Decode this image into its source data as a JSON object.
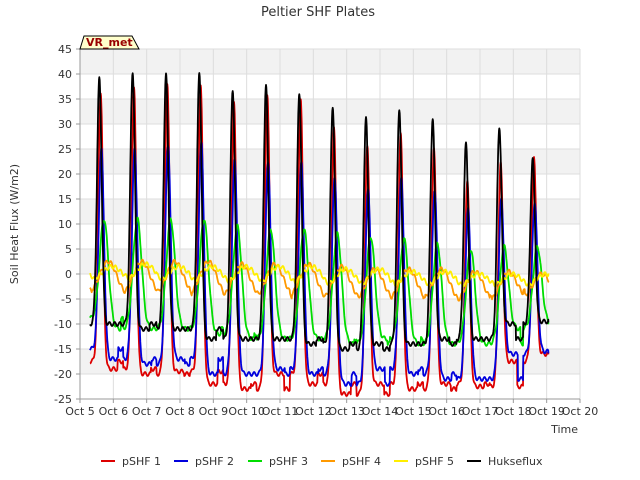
{
  "chart_data": {
    "type": "line",
    "title": "Peltier SHF Plates",
    "xlabel": "Time",
    "ylabel": "Soil Heat Flux (W/m2)",
    "ylim": [
      -25,
      45
    ],
    "xlim": [
      5,
      20
    ],
    "yticks": [
      -25,
      -20,
      -15,
      -10,
      -5,
      0,
      5,
      10,
      15,
      20,
      25,
      30,
      35,
      40,
      45
    ],
    "xticks": [
      {
        "x": 5,
        "label": "Oct 5"
      },
      {
        "x": 6,
        "label": "Oct 6"
      },
      {
        "x": 7,
        "label": "Oct 7"
      },
      {
        "x": 8,
        "label": "Oct 8"
      },
      {
        "x": 9,
        "label": "Oct 9"
      },
      {
        "x": 10,
        "label": "Oct 10"
      },
      {
        "x": 11,
        "label": "Oct 11"
      },
      {
        "x": 12,
        "label": "Oct 12"
      },
      {
        "x": 13,
        "label": "Oct 13"
      },
      {
        "x": 14,
        "label": "Oct 14"
      },
      {
        "x": 15,
        "label": "Oct 15"
      },
      {
        "x": 16,
        "label": "Oct 16"
      },
      {
        "x": 17,
        "label": "Oct 17"
      },
      {
        "x": 18,
        "label": "Oct 18"
      },
      {
        "x": 19,
        "label": "Oct 19"
      },
      {
        "x": 20,
        "label": "Oct 20"
      }
    ],
    "grid": true,
    "legend_position": "bottom",
    "annotation": "VR_met",
    "series": [
      {
        "name": "pSHF 1",
        "color": "#dd0000",
        "peak_phase": 0.62,
        "width": 0.07,
        "lag": 0,
        "points": [
          [
            5.3,
            -17
          ],
          [
            5.8,
            36.5
          ],
          [
            6.8,
            37
          ],
          [
            7.8,
            38
          ],
          [
            8.8,
            38
          ],
          [
            9.8,
            34
          ],
          [
            10.8,
            36
          ],
          [
            11.8,
            35
          ],
          [
            12.8,
            29
          ],
          [
            13.8,
            26
          ],
          [
            14.8,
            28
          ],
          [
            15.8,
            25
          ],
          [
            16.8,
            19
          ],
          [
            17.8,
            22
          ],
          [
            18.8,
            23.5
          ],
          [
            19.0,
            -18
          ]
        ],
        "troughs": [
          -17.5,
          -19,
          -20,
          -19.5,
          -22,
          -23,
          -20,
          -22,
          -24,
          -22,
          -23,
          -22,
          -22.5,
          -17.5,
          -16,
          -18
        ]
      },
      {
        "name": "pSHF 2",
        "color": "#0000dd",
        "peak_phase": 0.62,
        "width": 0.08,
        "lag": 0.02,
        "points": [
          [
            5.3,
            -14
          ],
          [
            5.8,
            25
          ],
          [
            6.8,
            25
          ],
          [
            7.8,
            26
          ],
          [
            8.8,
            26
          ],
          [
            9.8,
            23
          ],
          [
            10.8,
            22.5
          ],
          [
            11.8,
            22
          ],
          [
            12.8,
            19.5
          ],
          [
            13.8,
            17
          ],
          [
            14.8,
            19
          ],
          [
            15.8,
            17
          ],
          [
            16.8,
            13
          ],
          [
            17.8,
            15
          ],
          [
            18.8,
            14.5
          ],
          [
            19.0,
            -15
          ]
        ],
        "troughs": [
          -15,
          -17,
          -18,
          -17,
          -20,
          -20,
          -19,
          -20,
          -22,
          -19,
          -20,
          -21,
          -21,
          -16,
          -15.5,
          -16
        ]
      },
      {
        "name": "pSHF 3",
        "color": "#00dd00",
        "peak_phase": 0.67,
        "width": 0.13,
        "lag": 0.05,
        "points": [
          [
            5.3,
            -7.5
          ],
          [
            5.8,
            11
          ],
          [
            6.8,
            11
          ],
          [
            7.8,
            11
          ],
          [
            8.8,
            11
          ],
          [
            9.8,
            9.5
          ],
          [
            10.8,
            9
          ],
          [
            11.8,
            9
          ],
          [
            12.8,
            8
          ],
          [
            13.8,
            7.5
          ],
          [
            14.8,
            7
          ],
          [
            15.8,
            6
          ],
          [
            16.8,
            5
          ],
          [
            17.8,
            5.5
          ],
          [
            18.8,
            5.5
          ],
          [
            19.0,
            -9
          ]
        ],
        "troughs": [
          -9,
          -11,
          -11,
          -11,
          -12,
          -13,
          -13,
          -13,
          -14,
          -13,
          -14,
          -14,
          -14,
          -11,
          -10,
          -9
        ]
      },
      {
        "name": "pSHF 4",
        "color": "#ff9900",
        "peak_phase": 0.75,
        "width": 0.25,
        "lag": 0.1,
        "points": [
          [
            5.3,
            -1.5
          ],
          [
            5.8,
            2.5
          ],
          [
            6.8,
            2.5
          ],
          [
            7.8,
            2.5
          ],
          [
            8.8,
            2.5
          ],
          [
            9.8,
            2
          ],
          [
            10.8,
            2
          ],
          [
            11.8,
            2
          ],
          [
            12.8,
            1.5
          ],
          [
            13.8,
            1
          ],
          [
            14.8,
            1
          ],
          [
            15.8,
            1
          ],
          [
            16.8,
            0.5
          ],
          [
            17.8,
            0.5
          ],
          [
            18.8,
            0
          ],
          [
            19.0,
            -3
          ]
        ],
        "troughs": [
          -4,
          -4.5,
          -4.5,
          -4.5,
          -5,
          -5,
          -5,
          -5.5,
          -5.5,
          -5.5,
          -5.5,
          -6,
          -6,
          -5,
          -4,
          -3
        ]
      },
      {
        "name": "pSHF 5",
        "color": "#ffee00",
        "peak_phase": 0.82,
        "width": 0.3,
        "lag": 0.15,
        "points": [
          [
            5.3,
            0
          ],
          [
            5.8,
            1.5
          ],
          [
            6.8,
            2
          ],
          [
            7.8,
            1.5
          ],
          [
            8.8,
            1.5
          ],
          [
            9.8,
            1.5
          ],
          [
            10.8,
            1.5
          ],
          [
            11.8,
            1.5
          ],
          [
            12.8,
            1
          ],
          [
            13.8,
            1
          ],
          [
            14.8,
            0.5
          ],
          [
            15.8,
            0.5
          ],
          [
            16.8,
            0
          ],
          [
            17.8,
            0
          ],
          [
            18.8,
            0
          ],
          [
            19.0,
            -2
          ]
        ],
        "troughs": [
          -1.5,
          -2,
          -2,
          -2,
          -2.5,
          -2.5,
          -2.5,
          -3,
          -3,
          -3,
          -3,
          -3,
          -3,
          -3,
          -3,
          -2
        ]
      },
      {
        "name": "Hukseflux",
        "color": "#000000",
        "peak_phase": 0.6,
        "width": 0.07,
        "lag": -0.02,
        "points": [
          [
            5.3,
            -10
          ],
          [
            5.8,
            39
          ],
          [
            6.8,
            40.5
          ],
          [
            7.8,
            40
          ],
          [
            8.8,
            40
          ],
          [
            9.8,
            37
          ],
          [
            10.8,
            37.5
          ],
          [
            11.8,
            36
          ],
          [
            12.8,
            33.5
          ],
          [
            13.8,
            31
          ],
          [
            14.8,
            33
          ],
          [
            15.8,
            31
          ],
          [
            16.8,
            26
          ],
          [
            17.8,
            29.5
          ],
          [
            18.8,
            23
          ],
          [
            19.0,
            -10
          ]
        ],
        "troughs": [
          -10,
          -10,
          -11,
          -11,
          -13,
          -13,
          -13,
          -14,
          -15,
          -14,
          -14,
          -13,
          -13,
          -10,
          -9.5,
          -10
        ]
      }
    ]
  }
}
